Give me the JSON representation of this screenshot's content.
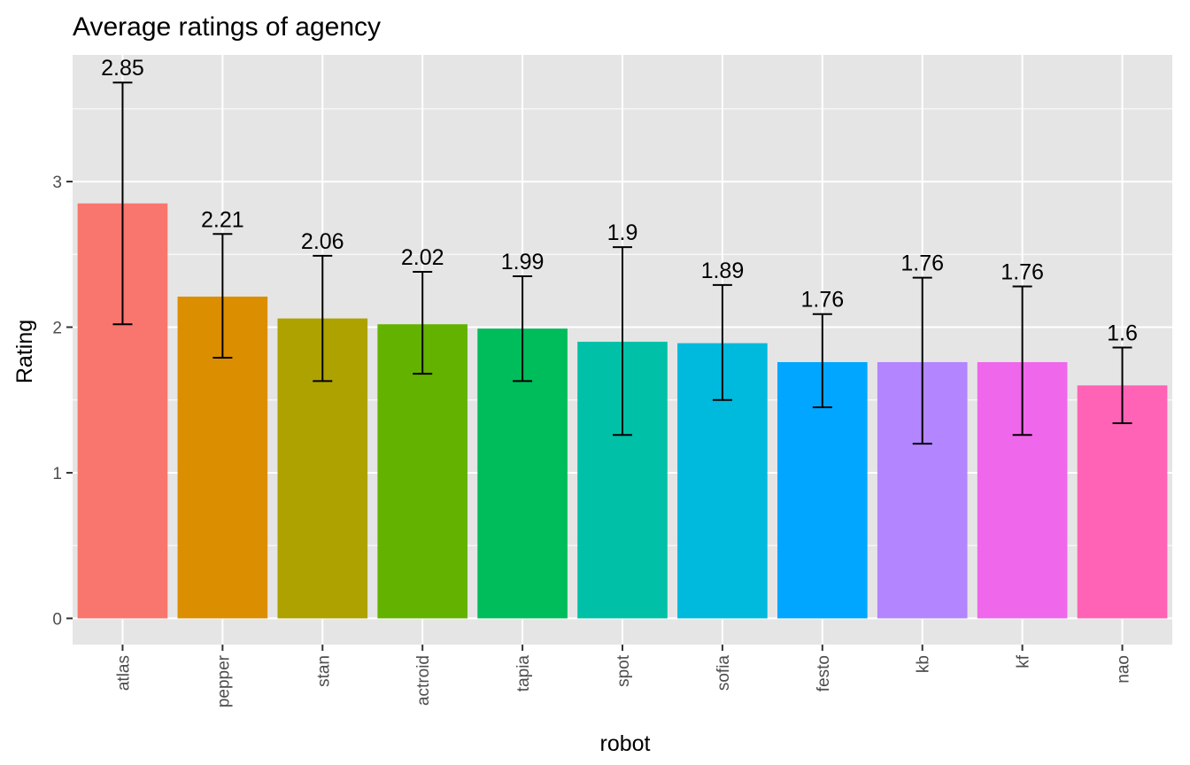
{
  "chart_data": {
    "type": "bar",
    "title": "Average ratings of agency",
    "xlabel": "robot",
    "ylabel": "Rating",
    "categories": [
      "atlas",
      "pepper",
      "stan",
      "actroid",
      "tapia",
      "spot",
      "sofia",
      "festo",
      "kb",
      "kf",
      "nao"
    ],
    "values": [
      2.85,
      2.21,
      2.06,
      2.02,
      1.99,
      1.9,
      1.89,
      1.76,
      1.76,
      1.76,
      1.6
    ],
    "value_labels": [
      "2.85",
      "2.21",
      "2.06",
      "2.02",
      "1.99",
      "1.9",
      "1.89",
      "1.76",
      "1.76",
      "1.76",
      "1.6"
    ],
    "error_low": [
      2.02,
      1.79,
      1.63,
      1.68,
      1.63,
      1.26,
      1.5,
      1.45,
      1.2,
      1.26,
      1.34
    ],
    "error_high": [
      3.68,
      2.64,
      2.49,
      2.38,
      2.35,
      2.55,
      2.29,
      2.09,
      2.34,
      2.28,
      1.86
    ],
    "colors": [
      "#F8766D",
      "#DB8E00",
      "#AEA200",
      "#64B200",
      "#00BD5C",
      "#00C1A7",
      "#00BADE",
      "#00A6FF",
      "#B385FF",
      "#EF67EB",
      "#FF63B6"
    ],
    "y_ticks": [
      0,
      1,
      2,
      3
    ],
    "ylim": [
      -0.18,
      3.87
    ],
    "grid": true,
    "legend": "none",
    "panel_background": "#E5E5E5",
    "grid_color": "#FFFFFF",
    "errorbar_color": "#000000"
  }
}
